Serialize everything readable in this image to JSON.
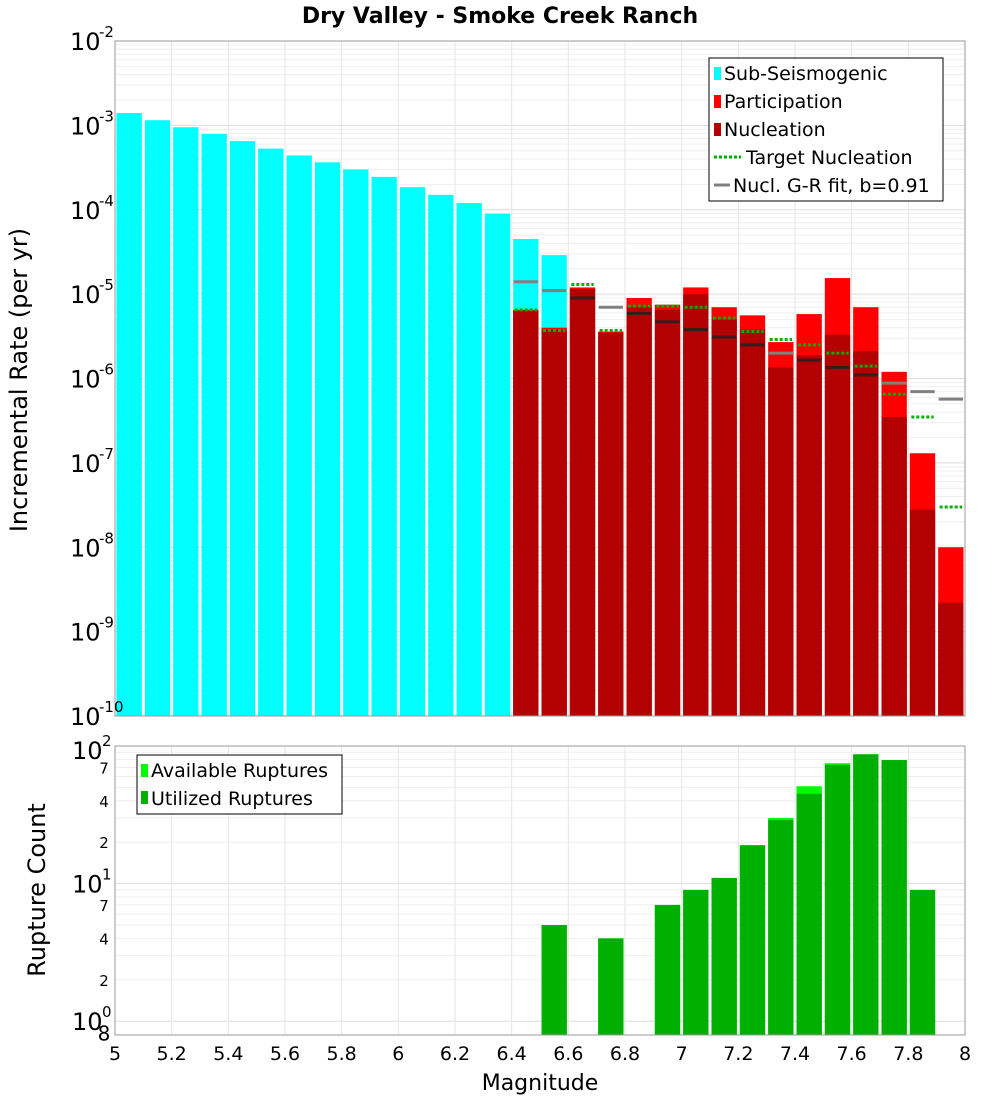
{
  "chart_data": [
    {
      "type": "bar",
      "title": "Dry Valley - Smoke Creek Ranch",
      "ylabel": "Incremental Rate (per yr)",
      "xlabel": "",
      "xlim": [
        5,
        8
      ],
      "ylim": [
        1e-10,
        0.01
      ],
      "yscale": "log",
      "bin_width": 0.1,
      "bin_centers": [
        5.05,
        5.15,
        5.25,
        5.35,
        5.45,
        5.55,
        5.65,
        5.75,
        5.85,
        5.95,
        6.05,
        6.15,
        6.25,
        6.35,
        6.45,
        6.55,
        6.65,
        6.75,
        6.85,
        6.95,
        7.05,
        7.15,
        7.25,
        7.35,
        7.45,
        7.55,
        7.65,
        7.75,
        7.85,
        7.95
      ],
      "y_tick_exponents": [
        -10,
        -9,
        -8,
        -7,
        -6,
        -5,
        -4,
        -3,
        -2
      ],
      "y_tick_base": "10",
      "legend": {
        "position": "top-right",
        "entries": [
          "Sub-Seismogenic",
          "Participation",
          "Nucleation",
          "Target Nucleation",
          "Nucl. G-R fit, b=0.91"
        ]
      },
      "series": [
        {
          "name": "Sub-Seismogenic",
          "color": "#00ffff",
          "values": [
            0.0014,
            0.00115,
            0.00095,
            0.00079,
            0.00065,
            0.00053,
            0.00044,
            0.000365,
            0.0003,
            0.000245,
            0.000185,
            0.00015,
            0.00012,
            9e-05,
            4.5e-05,
            2.9e-05,
            null,
            null,
            null,
            null,
            null,
            null,
            null,
            null,
            null,
            null,
            null,
            null,
            null,
            null
          ]
        },
        {
          "name": "Participation",
          "color": "#ff0000",
          "values": [
            null,
            null,
            null,
            null,
            null,
            null,
            null,
            null,
            null,
            null,
            null,
            null,
            null,
            null,
            6.5e-06,
            4e-06,
            1.2e-05,
            3.6e-06,
            9e-06,
            7.5e-06,
            1.2e-05,
            7e-06,
            5.6e-06,
            2.7e-06,
            5.8e-06,
            1.55e-05,
            7e-06,
            1.2e-06,
            1.3e-07,
            1e-08
          ]
        },
        {
          "name": "Nucleation",
          "color": "#b30000",
          "values": [
            null,
            null,
            null,
            null,
            null,
            null,
            null,
            null,
            null,
            null,
            null,
            null,
            null,
            null,
            6.3e-06,
            3.8e-06,
            1.15e-05,
            3.5e-06,
            7e-06,
            6.5e-06,
            1e-05,
            5e-06,
            3.8e-06,
            1.35e-06,
            1.9e-06,
            3.3e-06,
            2.1e-06,
            3.5e-07,
            2.8e-08,
            2.2e-09
          ]
        },
        {
          "name": "Target Nucleation",
          "color": "#00b300",
          "style": "dotted",
          "values": [
            null,
            null,
            null,
            null,
            null,
            null,
            null,
            null,
            null,
            null,
            null,
            null,
            null,
            null,
            6.5e-06,
            3.7e-06,
            1.3e-05,
            3.7e-06,
            7.2e-06,
            7.2e-06,
            7e-06,
            5.2e-06,
            3.6e-06,
            2.9e-06,
            2.5e-06,
            2e-06,
            1.4e-06,
            6.5e-07,
            3.5e-07,
            3e-08
          ]
        },
        {
          "name": "Nucl. G-R fit, b=0.91",
          "color": "#808080",
          "style": "solid",
          "values": [
            null,
            null,
            null,
            null,
            null,
            null,
            null,
            null,
            null,
            null,
            null,
            null,
            null,
            null,
            1.4e-05,
            1.1e-05,
            9e-06,
            7e-06,
            5.9e-06,
            4.7e-06,
            3.8e-06,
            3.1e-06,
            2.5e-06,
            2e-06,
            1.65e-06,
            1.35e-06,
            1.1e-06,
            8.8e-07,
            7e-07,
            5.7e-07
          ]
        }
      ]
    },
    {
      "type": "bar",
      "title": "",
      "ylabel": "Rupture Count",
      "xlabel": "Magnitude",
      "xlim": [
        5,
        8
      ],
      "ylim": [
        1,
        100
      ],
      "yscale": "log",
      "bin_width": 0.1,
      "bin_centers": [
        5.05,
        5.15,
        5.25,
        5.35,
        5.45,
        5.55,
        5.65,
        5.75,
        5.85,
        5.95,
        6.05,
        6.15,
        6.25,
        6.35,
        6.45,
        6.55,
        6.65,
        6.75,
        6.85,
        6.95,
        7.05,
        7.15,
        7.25,
        7.35,
        7.45,
        7.55,
        7.65,
        7.75,
        7.85,
        7.95
      ],
      "x_ticks": [
        "5",
        "5.2",
        "5.4",
        "5.6",
        "5.8",
        "6",
        "6.2",
        "6.4",
        "6.6",
        "6.8",
        "7",
        "7.2",
        "7.4",
        "7.6",
        "7.8",
        "8"
      ],
      "y_tick_labels": {
        "major": [
          {
            "base": "10",
            "exp": "0",
            "value": 1
          },
          {
            "base": "10",
            "exp": "1",
            "value": 10
          },
          {
            "base": "10",
            "exp": "2",
            "value": 100
          }
        ],
        "minor": [
          {
            "label": "8",
            "value": 0.8
          },
          {
            "label": "2",
            "value": 2
          },
          {
            "label": "4",
            "value": 4
          },
          {
            "label": "7",
            "value": 7
          },
          {
            "label": "2",
            "value": 20
          },
          {
            "label": "4",
            "value": 40
          },
          {
            "label": "7",
            "value": 70
          }
        ]
      },
      "legend": {
        "position": "top-left",
        "entries": [
          "Available Ruptures",
          "Utilized Ruptures"
        ]
      },
      "series": [
        {
          "name": "Available Ruptures",
          "color": "#00ff00",
          "values": [
            null,
            null,
            null,
            null,
            null,
            null,
            null,
            null,
            null,
            null,
            null,
            null,
            null,
            null,
            null,
            5,
            null,
            4,
            null,
            7,
            9,
            11,
            19,
            30,
            51,
            75,
            87,
            79,
            9,
            null
          ]
        },
        {
          "name": "Utilized Ruptures",
          "color": "#00b000",
          "values": [
            null,
            null,
            null,
            null,
            null,
            null,
            null,
            null,
            null,
            null,
            null,
            null,
            null,
            null,
            null,
            5,
            null,
            4,
            null,
            7,
            9,
            11,
            19,
            29,
            45,
            73,
            87,
            79,
            9,
            null
          ]
        }
      ]
    }
  ]
}
